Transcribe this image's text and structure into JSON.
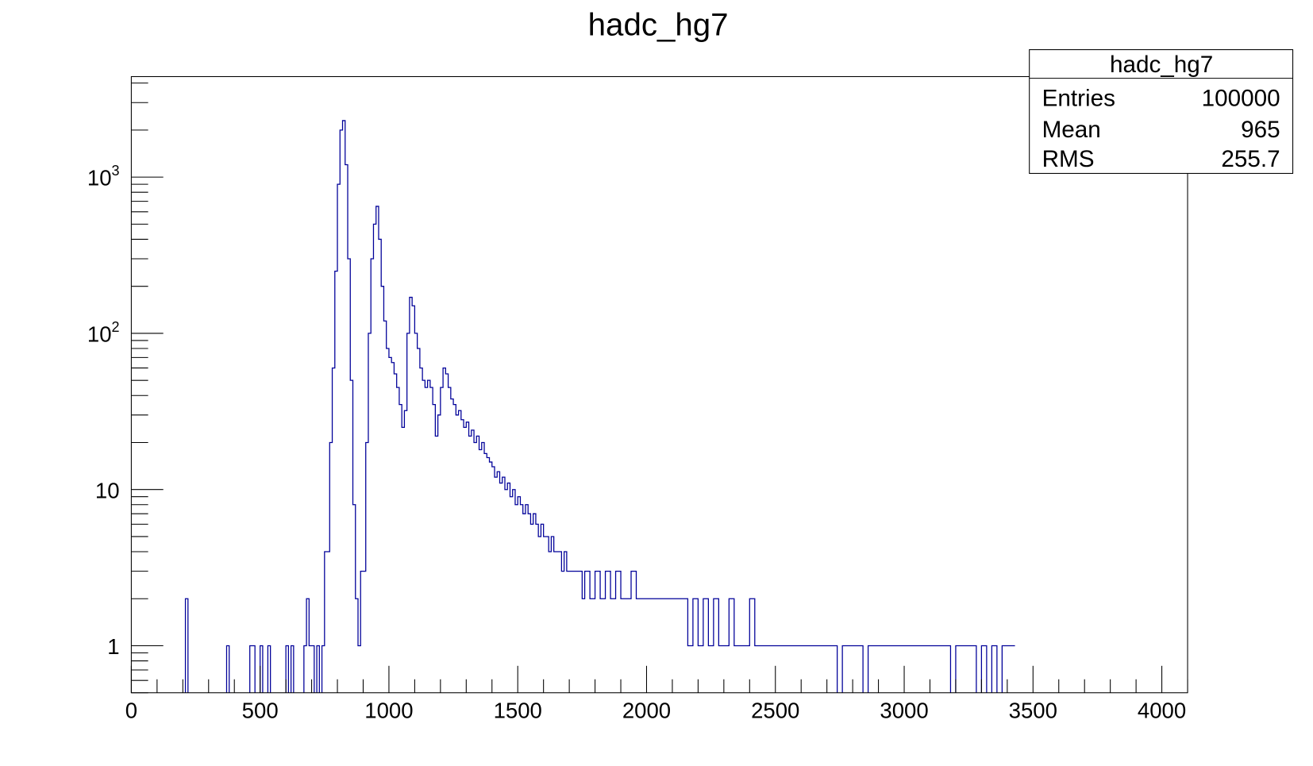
{
  "chart_data": {
    "type": "bar",
    "style": "step-histogram",
    "title": "hadc_hg7",
    "xlabel": "",
    "ylabel": "",
    "xlim": [
      0,
      4100
    ],
    "ylim": [
      0.5,
      4400
    ],
    "y_scale": "log",
    "grid": false,
    "line_color": "#000099",
    "x_ticks": [
      "0",
      "500",
      "1000",
      "1500",
      "2000",
      "2500",
      "3000",
      "3500",
      "4000"
    ],
    "y_ticks": [
      {
        "value": 1,
        "base": "1",
        "exp": ""
      },
      {
        "value": 10,
        "base": "10",
        "exp": ""
      },
      {
        "value": 100,
        "base": "10",
        "exp": "2"
      },
      {
        "value": 1000,
        "base": "10",
        "exp": "3"
      }
    ],
    "bins_x": [
      200,
      210,
      220,
      370,
      380,
      460,
      470,
      480,
      500,
      510,
      530,
      540,
      600,
      610,
      620,
      630,
      670,
      680,
      690,
      700,
      710,
      720,
      730,
      740,
      750,
      760,
      770,
      780,
      790,
      800,
      810,
      820,
      830,
      840,
      850,
      860,
      870,
      880,
      890,
      900,
      910,
      920,
      930,
      940,
      950,
      960,
      970,
      980,
      990,
      1000,
      1010,
      1020,
      1030,
      1040,
      1050,
      1060,
      1070,
      1080,
      1090,
      1100,
      1110,
      1120,
      1130,
      1140,
      1150,
      1160,
      1170,
      1180,
      1190,
      1200,
      1210,
      1220,
      1230,
      1240,
      1250,
      1260,
      1270,
      1280,
      1290,
      1300,
      1310,
      1320,
      1330,
      1340,
      1350,
      1360,
      1370,
      1380,
      1390,
      1400,
      1410,
      1420,
      1430,
      1440,
      1450,
      1460,
      1470,
      1480,
      1490,
      1500,
      1510,
      1520,
      1530,
      1540,
      1550,
      1560,
      1570,
      1580,
      1590,
      1600,
      1610,
      1620,
      1630,
      1640,
      1650,
      1660,
      1670,
      1680,
      1690,
      1700,
      1710,
      1720,
      1730,
      1740,
      1750,
      1760,
      1780,
      1800,
      1820,
      1840,
      1860,
      1880,
      1900,
      1920,
      1940,
      1960,
      1980,
      2000,
      2020,
      2040,
      2060,
      2080,
      2100,
      2120,
      2140,
      2160,
      2180,
      2200,
      2220,
      2240,
      2260,
      2280,
      2300,
      2320,
      2340,
      2360,
      2380,
      2400,
      2420,
      2440,
      2460,
      2480,
      2500,
      2520,
      2540,
      2560,
      2580,
      2600,
      2620,
      2640,
      2660,
      2680,
      2700,
      2720,
      2740,
      2760,
      2780,
      2800,
      2820,
      2840,
      2860,
      2880,
      2900,
      2920,
      2940,
      2960,
      2980,
      3000,
      3020,
      3040,
      3060,
      3080,
      3100,
      3120,
      3140,
      3160,
      3180,
      3200,
      3220,
      3240,
      3260,
      3280,
      3300,
      3320,
      3340,
      3360,
      3380,
      3400,
      3420
    ],
    "bins_count": [
      0,
      2,
      0,
      1,
      0,
      1,
      1,
      0,
      1,
      0,
      1,
      0,
      1,
      0,
      1,
      0,
      1,
      2,
      1,
      1,
      0,
      1,
      0,
      1,
      4,
      4,
      20,
      60,
      250,
      900,
      2000,
      2300,
      1200,
      300,
      50,
      8,
      2,
      1,
      3,
      3,
      20,
      100,
      300,
      500,
      650,
      400,
      200,
      120,
      80,
      70,
      65,
      55,
      45,
      35,
      25,
      32,
      100,
      170,
      150,
      100,
      80,
      60,
      50,
      45,
      50,
      45,
      35,
      22,
      30,
      45,
      60,
      55,
      45,
      38,
      35,
      30,
      32,
      28,
      25,
      27,
      22,
      24,
      20,
      22,
      18,
      20,
      17,
      16,
      15,
      14,
      12,
      13,
      11,
      12,
      10,
      11,
      9,
      10,
      8,
      9,
      8,
      7,
      8,
      7,
      6,
      7,
      6,
      5,
      6,
      5,
      5,
      4,
      5,
      4,
      4,
      4,
      3,
      4,
      3,
      3,
      3,
      3,
      3,
      3,
      2,
      3,
      2,
      3,
      2,
      3,
      2,
      3,
      2,
      2,
      3,
      2,
      2,
      2,
      2,
      2,
      2,
      2,
      2,
      2,
      2,
      1,
      2,
      1,
      2,
      1,
      2,
      1,
      1,
      2,
      1,
      1,
      1,
      2,
      1,
      1,
      1,
      1,
      1,
      1,
      1,
      1,
      1,
      1,
      1,
      1,
      1,
      1,
      1,
      1,
      0,
      1,
      1,
      1,
      1,
      0,
      1,
      1,
      1,
      1,
      1,
      1,
      1,
      1,
      1,
      1,
      1,
      1,
      1,
      1,
      1,
      1,
      0,
      1,
      1,
      1,
      1,
      0,
      1,
      0,
      1,
      0,
      1,
      1,
      1,
      0
    ]
  },
  "stats_box": {
    "title": "hadc_hg7",
    "rows": [
      {
        "label": "Entries",
        "value": "100000"
      },
      {
        "label": "Mean",
        "value": "965"
      },
      {
        "label": "RMS",
        "value": "255.7"
      }
    ]
  }
}
